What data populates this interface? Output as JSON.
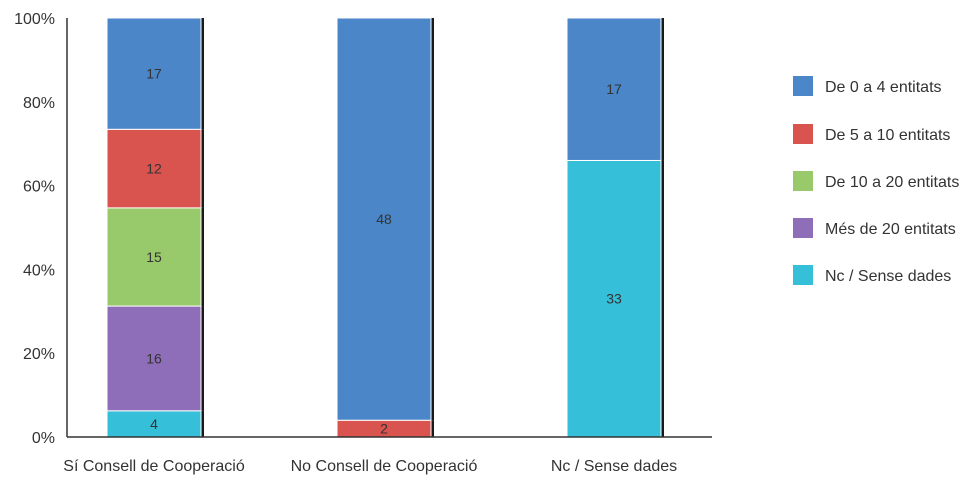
{
  "chart_data": {
    "type": "bar",
    "stacked": true,
    "normalized": true,
    "categories": [
      "Sí Consell de Cooperació",
      "No Consell de Cooperació",
      "Nc / Sense dades"
    ],
    "series": [
      {
        "name": "Nc / Sense dades",
        "color": "#35bfd8",
        "values": [
          4,
          0,
          33
        ]
      },
      {
        "name": "Més de 20 entitats",
        "color": "#8e6eb8",
        "values": [
          16,
          0,
          0
        ]
      },
      {
        "name": "De 10 a 20 entitats",
        "color": "#98c96a",
        "values": [
          15,
          0,
          0
        ]
      },
      {
        "name": "De 5 a 10 entitats",
        "color": "#d9534f",
        "values": [
          12,
          2,
          0
        ]
      },
      {
        "name": "De 0 a 4 entitats",
        "color": "#4a86c8",
        "values": [
          17,
          48,
          17
        ]
      }
    ],
    "legend_order": [
      "De 0 a 4 entitats",
      "De 5 a 10 entitats",
      "De 10 a 20 entitats",
      "Més de 20 entitats",
      "Nc / Sense dades"
    ],
    "yticks": [
      "0%",
      "20%",
      "40%",
      "60%",
      "80%",
      "100%"
    ],
    "ylim": [
      0,
      100
    ],
    "grid": false,
    "legend_position": "right"
  }
}
